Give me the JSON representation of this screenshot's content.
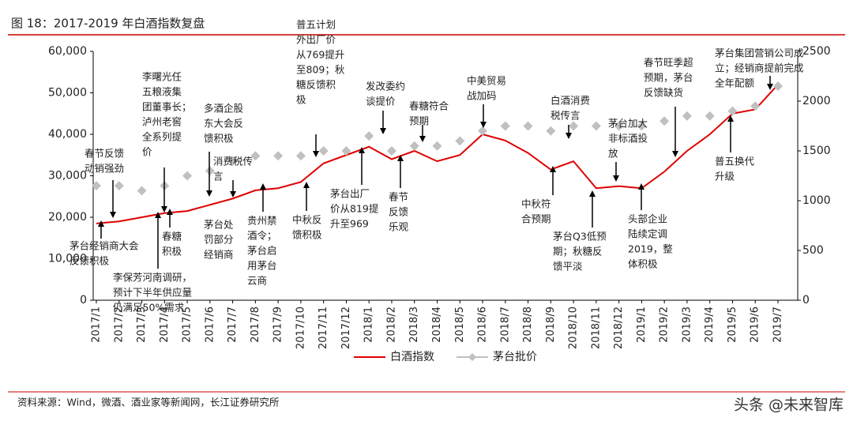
{
  "chart_data": {
    "type": "line",
    "title": "图 18：2017-2019 年白酒指数复盘",
    "source": "资料来源：Wind，微酒、酒业家等新闻网，长江证券研究所",
    "watermark": "头条 @未来智库",
    "categories": [
      "2017/1",
      "2017/2",
      "2017/3",
      "2017/4",
      "2017/5",
      "2017/6",
      "2017/7",
      "2017/8",
      "2017/9",
      "2017/10",
      "2017/11",
      "2017/12",
      "2018/1",
      "2018/2",
      "2018/3",
      "2018/4",
      "2018/5",
      "2018/6",
      "2018/7",
      "2018/8",
      "2018/9",
      "2018/10",
      "2018/11",
      "2018/12",
      "2019/1",
      "2019/2",
      "2019/3",
      "2019/4",
      "2019/5",
      "2019/6",
      "2019/7"
    ],
    "series": [
      {
        "name": "白酒指数",
        "color": "#e00000",
        "values": [
          18500,
          19000,
          20000,
          21000,
          21500,
          23000,
          24500,
          26500,
          27000,
          28500,
          33000,
          35000,
          37000,
          34000,
          36000,
          33500,
          35000,
          40000,
          38500,
          35500,
          31500,
          33500,
          27000,
          27500,
          27000,
          31000,
          36000,
          40000,
          45000,
          46000,
          52000
        ]
      },
      {
        "name": "茅台批价",
        "color": "#c0c0c0",
        "axis": "y2",
        "values": [
          1150,
          1150,
          1100,
          1150,
          1250,
          1300,
          1400,
          1450,
          1450,
          1450,
          1500,
          1500,
          1650,
          1500,
          1550,
          1550,
          1600,
          1700,
          1750,
          1750,
          1700,
          1750,
          1750,
          1750,
          1750,
          1800,
          1850,
          1850,
          1900,
          1950,
          2150
        ]
      }
    ],
    "ylim": [
      0,
      60000
    ],
    "yticks": [
      0,
      {
        "value": 10000,
        "label": "10,000"
      },
      {
        "value": 20000,
        "label": "20,000"
      },
      {
        "value": 30000,
        "label": "30,000"
      },
      {
        "value": 40000,
        "label": "40,000"
      },
      {
        "value": 50000,
        "label": "50,000"
      },
      {
        "value": 60000,
        "label": "60,000"
      }
    ],
    "y2lim": [
      0,
      2500
    ],
    "y2ticks": [
      0,
      500,
      1000,
      1500,
      2000,
      2500
    ],
    "legend": "bottom",
    "annotations": [
      {
        "lines": [
          "春节反馈",
          "动销强劲"
        ]
      },
      {
        "lines": [
          "茅台经销商大会",
          "反馈积极"
        ]
      },
      {
        "lines": [
          "李保芳河南调研，",
          "预计下半年供应量",
          "仍满足50%需求"
        ]
      },
      {
        "lines": [
          "李曙光任",
          "五粮液集",
          "团董事长；",
          "泸州老窖",
          "全系列提",
          "价"
        ]
      },
      {
        "lines": [
          "春糖",
          "积极"
        ]
      },
      {
        "lines": [
          "多酒企股",
          "东大会反",
          "馈积极"
        ]
      },
      {
        "lines": [
          "茅台处",
          "罚部分",
          "经销商"
        ]
      },
      {
        "lines": [
          "消费税传",
          "言"
        ]
      },
      {
        "lines": [
          "贵州禁",
          "酒令；",
          "茅台启",
          "用茅台",
          "云商"
        ]
      },
      {
        "lines": [
          "普五计划",
          "外出厂价",
          "从769提升",
          "至809；秋",
          "糖反馈积",
          "极"
        ]
      },
      {
        "lines": [
          "中秋反",
          "馈积极"
        ]
      },
      {
        "lines": [
          "茅台出厂",
          "价从819提",
          "升至969"
        ]
      },
      {
        "lines": [
          "发改委约",
          "谈提价"
        ]
      },
      {
        "lines": [
          "春节",
          "反馈",
          "乐观"
        ]
      },
      {
        "lines": [
          "春糖符合",
          "预期"
        ]
      },
      {
        "lines": [
          "中美贸易",
          "战加码"
        ]
      },
      {
        "lines": [
          "中秋符",
          "合预期"
        ]
      },
      {
        "lines": [
          "白酒消费",
          "税传言"
        ]
      },
      {
        "lines": [
          "茅台Q3低预",
          "期；秋糖反",
          "馈平淡"
        ]
      },
      {
        "lines": [
          "春节旺季超",
          "预期，茅台",
          "反馈缺货"
        ]
      },
      {
        "lines": [
          "茅台加大",
          "非标酒投",
          "放"
        ]
      },
      {
        "lines": [
          "头部企业",
          "陆续定调",
          "2019，整",
          "体积极"
        ]
      },
      {
        "lines": [
          "茅台集团营销公司成",
          "立；经销商提前完成",
          "全年配额"
        ]
      },
      {
        "lines": [
          "普五换代",
          "升级"
        ]
      }
    ]
  }
}
